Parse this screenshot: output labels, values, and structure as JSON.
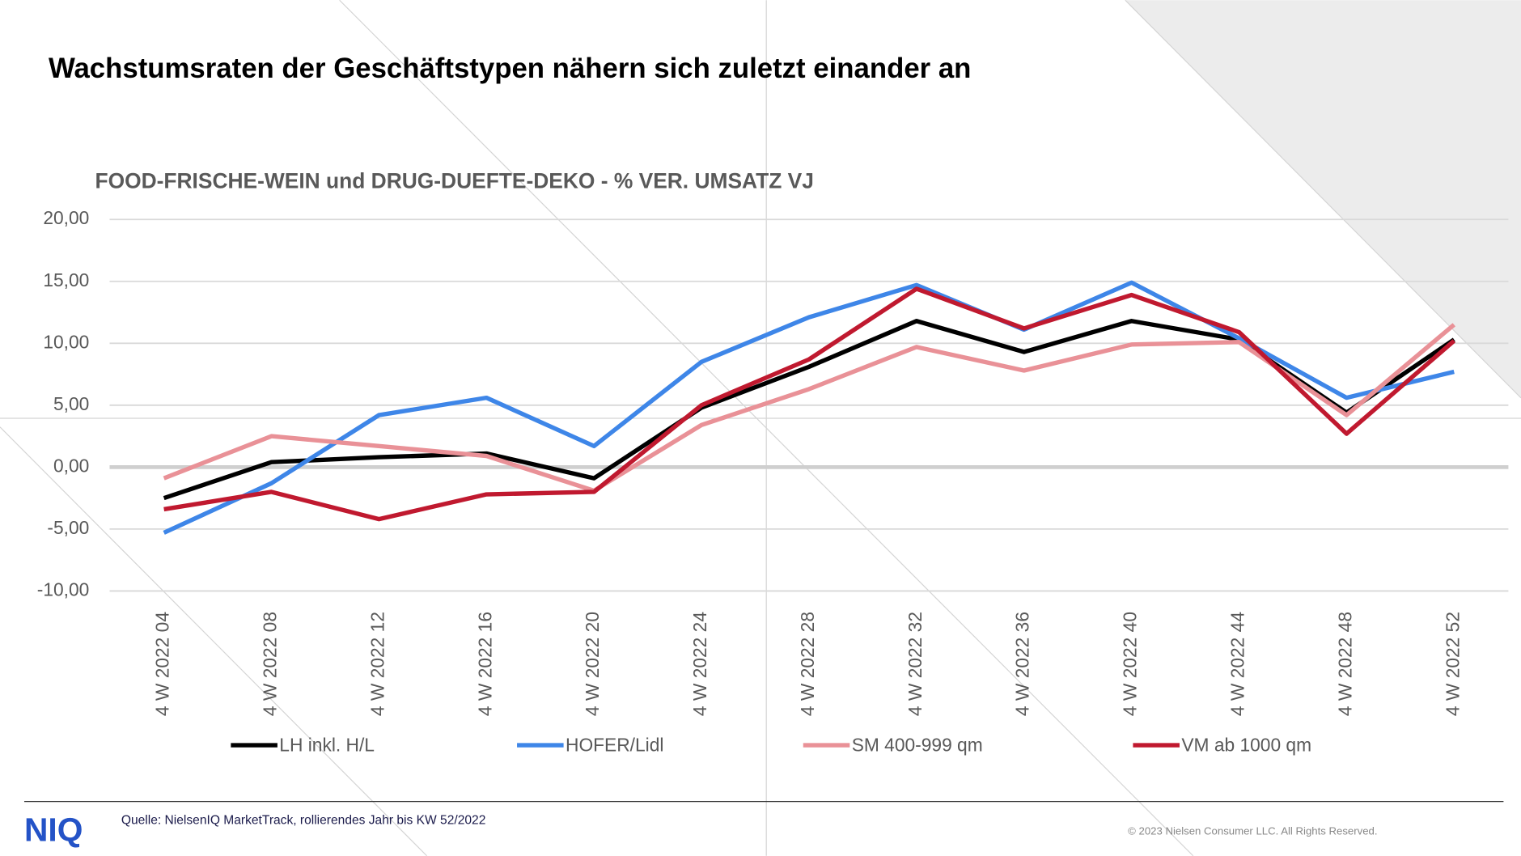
{
  "slide": {
    "title": "Wachstumsraten der Geschäftstypen nähern sich zuletzt einander an"
  },
  "footer": {
    "logo": "NIQ",
    "source": "Quelle: NielsenIQ MarketTrack, rollierendes Jahr bis KW 52/2022",
    "copyright": "© 2023 Nielsen Consumer LLC. All Rights Reserved."
  },
  "chart_data": {
    "type": "line",
    "title": "FOOD-FRISCHE-WEIN  und DRUG-DUEFTE-DEKO  - % VER. UMSATZ VJ",
    "categories": [
      "4 W 2022 04",
      "4 W 2022 08",
      "4 W 2022 12",
      "4 W 2022 16",
      "4 W 2022 20",
      "4 W 2022 24",
      "4 W 2022 28",
      "4 W 2022 32",
      "4 W 2022 36",
      "4 W 2022 40",
      "4 W 2022 44",
      "4 W 2022 48",
      "4 W 2022 52"
    ],
    "series": [
      {
        "name": "LH inkl. H/L",
        "color": "#000000",
        "values": [
          -2.5,
          0.4,
          0.8,
          1.1,
          -0.9,
          4.8,
          8.1,
          11.8,
          9.3,
          11.8,
          10.3,
          4.4,
          10.3
        ]
      },
      {
        "name": "HOFER/Lidl",
        "color": "#3e86e8",
        "values": [
          -5.3,
          -1.3,
          4.2,
          5.6,
          1.7,
          8.5,
          12.1,
          14.7,
          11.1,
          14.9,
          10.4,
          5.6,
          7.7
        ]
      },
      {
        "name": "SM 400-999 qm",
        "color": "#e99197",
        "values": [
          -0.9,
          2.5,
          1.7,
          0.9,
          -1.9,
          3.4,
          6.3,
          9.7,
          7.8,
          9.9,
          10.1,
          4.2,
          11.5
        ]
      },
      {
        "name": "VM ab 1000 qm",
        "color": "#c0192f",
        "values": [
          -3.4,
          -2.0,
          -4.2,
          -2.2,
          -2.0,
          5.0,
          8.7,
          14.4,
          11.2,
          13.9,
          10.9,
          2.7,
          10.2
        ]
      }
    ],
    "ylim": [
      -10,
      20
    ],
    "yticks": [
      {
        "value": -10,
        "label": "-10,00"
      },
      {
        "value": -5,
        "label": "-5,00"
      },
      {
        "value": 0,
        "label": "0,00"
      },
      {
        "value": 5,
        "label": "5,00"
      },
      {
        "value": 10,
        "label": "10,00"
      },
      {
        "value": 15,
        "label": "15,00"
      },
      {
        "value": 20,
        "label": "20,00"
      }
    ],
    "grid": true
  }
}
